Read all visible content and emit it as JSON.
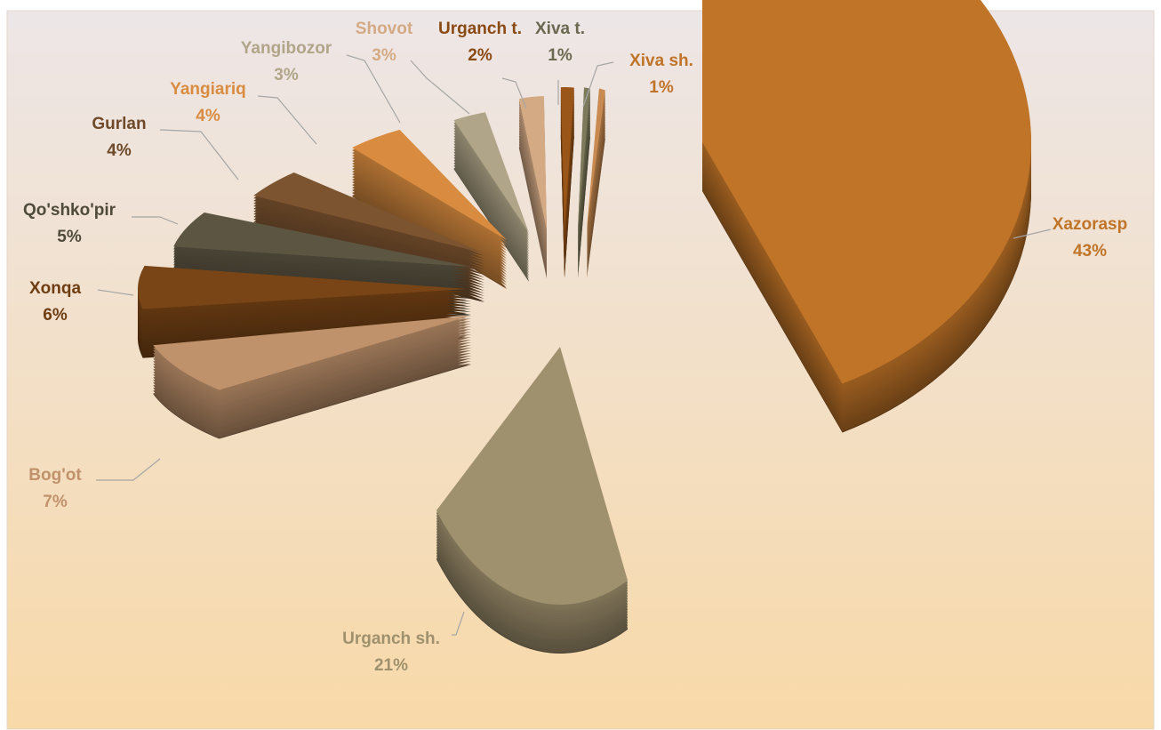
{
  "chart_data": {
    "type": "pie",
    "style": "3d-exploded",
    "title": "",
    "slices": [
      {
        "label": "Xazorasp",
        "value": 43,
        "value_label": "43%",
        "color": "#C07428",
        "label_color": "#C07428"
      },
      {
        "label": "Urganch sh.",
        "value": 21,
        "value_label": "21%",
        "color": "#A0916E",
        "label_color": "#A0916E"
      },
      {
        "label": "Bog'ot",
        "value": 7,
        "value_label": "7%",
        "color": "#C0926C",
        "label_color": "#C0926C"
      },
      {
        "label": "Xonqa",
        "value": 6,
        "value_label": "6%",
        "color": "#7A4516",
        "label_color": "#6E3D12"
      },
      {
        "label": "Qo'shko'pir",
        "value": 5,
        "value_label": "5%",
        "color": "#5C5542",
        "label_color": "#4F4A3A"
      },
      {
        "label": "Gurlan",
        "value": 4,
        "value_label": "4%",
        "color": "#7D5430",
        "label_color": "#6E4A2A"
      },
      {
        "label": "Yangiariq",
        "value": 4,
        "value_label": "4%",
        "color": "#D98C40",
        "label_color": "#D98C40"
      },
      {
        "label": "Yangibozor",
        "value": 3,
        "value_label": "3%",
        "color": "#B0A588",
        "label_color": "#B0A588"
      },
      {
        "label": "Shovot",
        "value": 3,
        "value_label": "3%",
        "color": "#D4AA85",
        "label_color": "#D4AA85"
      },
      {
        "label": "Urganch t.",
        "value": 2,
        "value_label": "2%",
        "color": "#9A5518",
        "label_color": "#8A4A14"
      },
      {
        "label": "Xiva t.",
        "value": 1,
        "value_label": "1%",
        "color": "#7D7A5C",
        "label_color": "#6A6850"
      },
      {
        "label": "Xiva sh.",
        "value": 1,
        "value_label": "1%",
        "color": "#C88A50",
        "label_color": "#C07428"
      }
    ],
    "legend": "none",
    "data_labels": "outside-with-leader-lines"
  },
  "colors": {
    "background_top": "#EDE6E7",
    "background_bottom": "#F8D9A8",
    "frame_border": "#E4D6CC"
  }
}
